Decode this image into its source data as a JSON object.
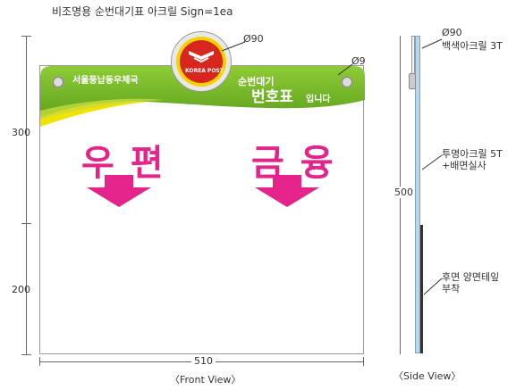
{
  "title": "비조명용 순번대기표 아크릴 Sign=1ea",
  "front": {
    "org_name": "서울풍납동우체국",
    "subtitle_1": "순번대기",
    "subtitle_2": "번호표",
    "subtitle_3": "입니다",
    "logo_text": "KOREA POST",
    "left_label": "우편",
    "right_label": "금융",
    "callout_logo": "Ø90",
    "callout_hole": "Ø9",
    "dim_width": "510",
    "dim_height_top": "300",
    "dim_height_bottom": "200",
    "view_label": "〈Front View〉"
  },
  "side": {
    "callout_top": "Ø90",
    "callout_top_2": "백색아크릴 3T",
    "callout_mid": "투명아크릴 5T",
    "callout_mid_2": "+배면실사",
    "callout_back": "후면 양면테잎",
    "callout_back_2": "부착",
    "dim_height": "500",
    "view_label": "〈Side View〉"
  },
  "colors": {
    "accent_magenta": "#e4238b",
    "header_green": "#7bbf2a",
    "header_yellow": "#f2e200",
    "logo_red": "#d7261e",
    "logo_ring": "#f7d200"
  }
}
